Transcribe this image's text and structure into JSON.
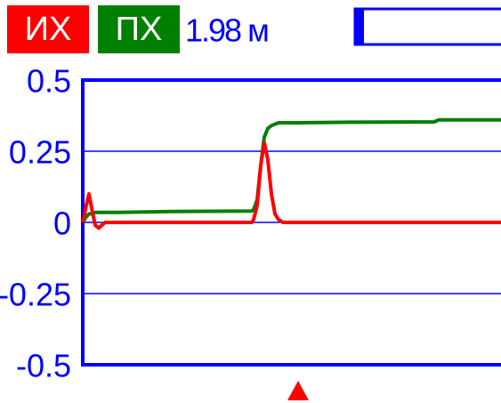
{
  "chart_data": {
    "type": "line",
    "annotation": "1.98 м",
    "x": [
      0,
      4,
      7,
      10,
      14,
      18,
      25,
      40,
      100,
      190,
      192,
      196,
      200,
      204,
      208,
      212,
      216,
      220,
      225,
      240,
      300,
      395,
      400,
      470
    ],
    "series": [
      {
        "name": "ИХ",
        "color": "#ff0000",
        "values": [
          0,
          0.06,
          0.1,
          0.05,
          -0.01,
          -0.02,
          0,
          0,
          0,
          0,
          0.01,
          0.06,
          0.2,
          0.28,
          0.22,
          0.1,
          0.03,
          0.01,
          0,
          0,
          0,
          0,
          0,
          0
        ]
      },
      {
        "name": "ПХ",
        "color": "#008000",
        "values": [
          0,
          0.02,
          0.03,
          0.03,
          0.035,
          0.035,
          0.035,
          0.035,
          0.038,
          0.04,
          0.045,
          0.08,
          0.2,
          0.3,
          0.33,
          0.34,
          0.345,
          0.35,
          0.35,
          0.35,
          0.352,
          0.353,
          0.36,
          0.36
        ]
      }
    ],
    "xlim": [
      0,
      470
    ],
    "ylim": [
      -0.5,
      0.5
    ],
    "yticks": [
      -0.5,
      -0.25,
      0,
      0.25,
      0.5
    ],
    "grid": true
  }
}
